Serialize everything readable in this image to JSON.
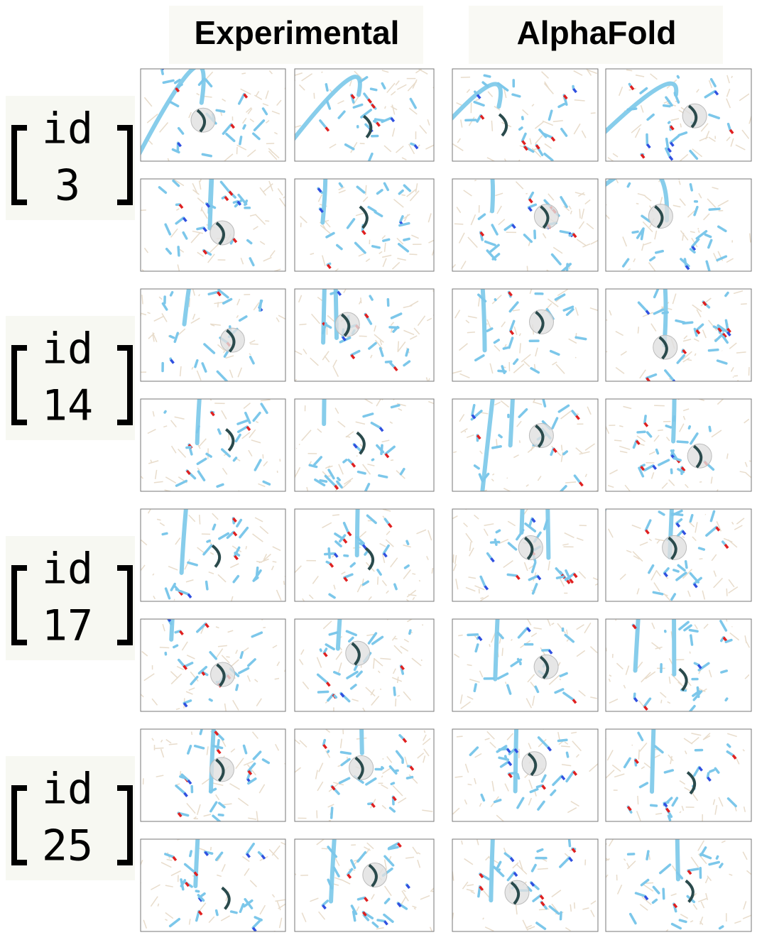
{
  "headers": [
    "Experimental",
    "AlphaFold"
  ],
  "groups": [
    {
      "top": "id",
      "bottom": "3"
    },
    {
      "top": "id",
      "bottom": "14"
    },
    {
      "top": "id",
      "bottom": "17"
    },
    {
      "top": "id",
      "bottom": "25"
    }
  ]
}
